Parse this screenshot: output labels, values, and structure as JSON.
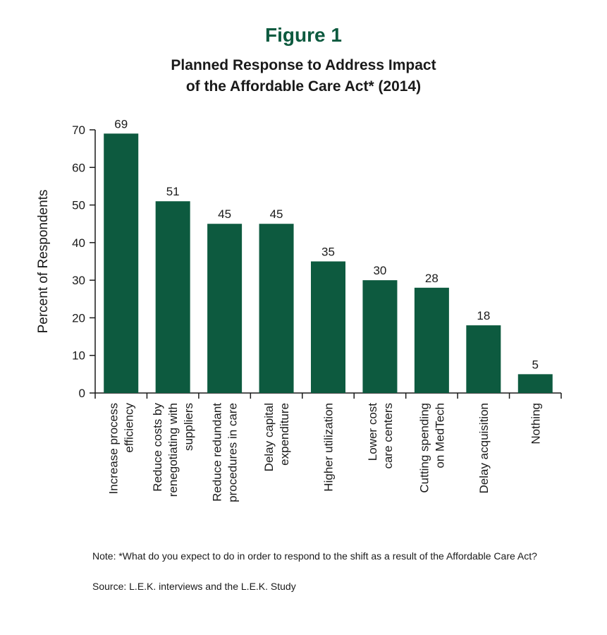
{
  "figure": {
    "label": "Figure 1",
    "title_line1": "Planned Response to Address Impact",
    "title_line2": "of the Affordable Care Act* (2014)"
  },
  "colors": {
    "bar": "#0d5a3f",
    "heading": "#0d5a3f"
  },
  "chart_data": {
    "type": "bar",
    "title": "Planned Response to Address Impact of the Affordable Care Act* (2014)",
    "xlabel": "",
    "ylabel": "Percent of Respondents",
    "ylim": [
      0,
      70
    ],
    "yticks": [
      0,
      10,
      20,
      30,
      40,
      50,
      60,
      70
    ],
    "grid": false,
    "categories": [
      [
        "Increase process",
        "efficiency"
      ],
      [
        "Reduce costs by",
        "renegotiating with",
        "suppliers"
      ],
      [
        "Reduce redundant",
        "procedures in care"
      ],
      [
        "Delay capital",
        "expenditure"
      ],
      [
        "Higher utilization"
      ],
      [
        "Lower cost",
        "care centers"
      ],
      [
        "Cutting spending",
        "on MedTech"
      ],
      [
        "Delay acquisition"
      ],
      [
        "Nothing"
      ]
    ],
    "values": [
      69,
      51,
      45,
      45,
      35,
      30,
      28,
      18,
      5
    ]
  },
  "note": "Note: *What do you expect to do in order to respond to the shift as a result of the Affordable Care Act?",
  "source": "Source: L.E.K. interviews and the L.E.K. Study"
}
